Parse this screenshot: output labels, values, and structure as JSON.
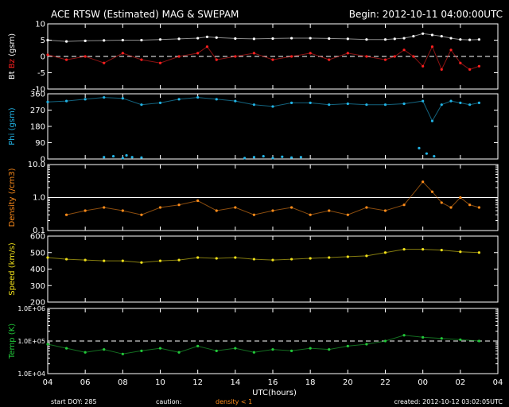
{
  "title": "ACE RTSW (Estimated) MAG & SWEPAM",
  "begin_label": "Begin: 2012-10-11 04:00:00UTC",
  "footer": {
    "start_doy": "start DOY: 285",
    "caution": "caution:",
    "density_note": "density < 1",
    "created": "created: 2012-10-12 03:02:05UTC"
  },
  "colors": {
    "background": "#000000",
    "axes": "#ffffff",
    "bt": "#ffffff",
    "bz": "#ff2020",
    "phi": "#22b4e6",
    "density": "#ff8c1a",
    "speed": "#f2e21b",
    "temp": "#22c93a",
    "caution_mark": "#ff8c1a"
  },
  "chart_data": [
    {
      "type": "scatter",
      "panel": "mag",
      "ylabel_parts": [
        "Bt",
        "Bz",
        "(gsm)"
      ],
      "ylim": [
        -10,
        10
      ],
      "yticks": [
        -10,
        -5,
        0,
        5,
        10
      ],
      "reference_line": 0,
      "series": [
        {
          "name": "Bt",
          "x": [
            0,
            1,
            2,
            3,
            4,
            5,
            6,
            7,
            8,
            8.5,
            9,
            10,
            11,
            12,
            13,
            14,
            15,
            16,
            17,
            18,
            18.5,
            19,
            19.5,
            20,
            20.5,
            21,
            21.5,
            22,
            22.5,
            23
          ],
          "y": [
            5,
            4.6,
            4.8,
            4.9,
            5,
            5,
            5.2,
            5.4,
            5.6,
            6,
            5.8,
            5.5,
            5.4,
            5.5,
            5.6,
            5.6,
            5.5,
            5.4,
            5.2,
            5.2,
            5.4,
            5.6,
            6.2,
            7,
            6.6,
            6.2,
            5.6,
            5.2,
            5.1,
            5.2
          ]
        },
        {
          "name": "Bz",
          "x": [
            0,
            1,
            2,
            3,
            4,
            5,
            6,
            7,
            8,
            8.5,
            9,
            10,
            11,
            12,
            13,
            14,
            15,
            16,
            17,
            18,
            18.5,
            19,
            19.5,
            20,
            20.5,
            21,
            21.5,
            22,
            22.5,
            23
          ],
          "y": [
            0.5,
            -1,
            0,
            -2,
            1,
            -1,
            -2,
            0,
            1,
            3,
            -1,
            0,
            1,
            -1,
            0,
            1,
            -1,
            1,
            0,
            -1,
            0,
            2,
            0,
            -3,
            3,
            -4,
            2,
            -2,
            -4,
            -3
          ]
        }
      ]
    },
    {
      "type": "scatter",
      "panel": "phi",
      "ylabel_parts": [
        "Phi (gsm)"
      ],
      "ylim": [
        0,
        360
      ],
      "yticks": [
        0,
        90,
        180,
        270,
        360
      ],
      "series": [
        {
          "name": "Phi",
          "x": [
            0,
            1,
            2,
            3,
            4,
            5,
            6,
            7,
            8,
            9,
            10,
            11,
            12,
            13,
            14,
            15,
            16,
            17,
            18,
            19,
            20,
            20.5,
            21,
            21.5,
            22,
            22.5,
            23
          ],
          "y": [
            315,
            320,
            330,
            340,
            335,
            300,
            310,
            330,
            340,
            330,
            320,
            300,
            290,
            310,
            310,
            300,
            305,
            300,
            300,
            305,
            320,
            210,
            300,
            320,
            310,
            300,
            310
          ]
        },
        {
          "name": "Phi-low",
          "x": [
            3,
            3.5,
            4,
            4.2,
            4.5,
            5,
            10.5,
            11,
            11.5,
            12,
            12.5,
            13,
            13.5,
            19.8,
            20.2,
            20.6
          ],
          "y": [
            10,
            15,
            5,
            20,
            10,
            8,
            5,
            10,
            15,
            5,
            12,
            8,
            10,
            60,
            30,
            15
          ]
        }
      ]
    },
    {
      "type": "scatter",
      "panel": "density",
      "ylabel_parts": [
        "Density (/cm3)"
      ],
      "yscale": "log",
      "ylim": [
        0.1,
        10
      ],
      "ytick_labels": [
        "0.1",
        "1.0",
        "10.0"
      ],
      "reference_line": 1,
      "series": [
        {
          "name": "Density",
          "x": [
            1,
            2,
            3,
            4,
            5,
            6,
            7,
            8,
            9,
            10,
            11,
            12,
            13,
            14,
            15,
            16,
            17,
            18,
            19,
            20,
            20.5,
            21,
            21.5,
            22,
            22.5,
            23
          ],
          "y": [
            0.3,
            0.4,
            0.5,
            0.4,
            0.3,
            0.5,
            0.6,
            0.8,
            0.4,
            0.5,
            0.3,
            0.4,
            0.5,
            0.3,
            0.4,
            0.3,
            0.5,
            0.4,
            0.6,
            3,
            1.5,
            0.7,
            0.5,
            1.0,
            0.6,
            0.5
          ]
        }
      ]
    },
    {
      "type": "scatter",
      "panel": "speed",
      "ylabel_parts": [
        "Speed (km/s)"
      ],
      "ylim": [
        200,
        600
      ],
      "yticks": [
        200,
        300,
        400,
        500,
        600
      ],
      "series": [
        {
          "name": "Speed",
          "x": [
            0,
            1,
            2,
            3,
            4,
            5,
            6,
            7,
            8,
            9,
            10,
            11,
            12,
            13,
            14,
            15,
            16,
            17,
            18,
            19,
            20,
            21,
            22,
            23
          ],
          "y": [
            470,
            460,
            455,
            450,
            450,
            440,
            450,
            455,
            470,
            465,
            470,
            460,
            455,
            460,
            465,
            470,
            475,
            480,
            500,
            520,
            520,
            515,
            505,
            500
          ]
        }
      ]
    },
    {
      "type": "scatter",
      "panel": "temp",
      "ylabel_parts": [
        "Temp (K)"
      ],
      "yscale": "log",
      "ylim": [
        10000,
        1000000
      ],
      "ytick_labels": [
        "1.0E+04",
        "1.0E+05",
        "1.0E+06"
      ],
      "reference_line": 100000,
      "series": [
        {
          "name": "Temp",
          "x": [
            0,
            1,
            2,
            3,
            4,
            5,
            6,
            7,
            8,
            9,
            10,
            11,
            12,
            13,
            14,
            15,
            16,
            17,
            18,
            19,
            20,
            21,
            22,
            23
          ],
          "y": [
            80000,
            60000,
            45000,
            55000,
            40000,
            50000,
            60000,
            45000,
            70000,
            50000,
            60000,
            45000,
            55000,
            50000,
            60000,
            55000,
            70000,
            80000,
            100000,
            150000,
            130000,
            120000,
            110000,
            100000
          ]
        }
      ]
    }
  ],
  "x_axis": {
    "xlim": [
      0,
      24
    ],
    "tick_labels": [
      "04",
      "06",
      "08",
      "10",
      "12",
      "14",
      "16",
      "18",
      "20",
      "22",
      "00",
      "02",
      "04"
    ],
    "label": "UTC(hours)"
  }
}
